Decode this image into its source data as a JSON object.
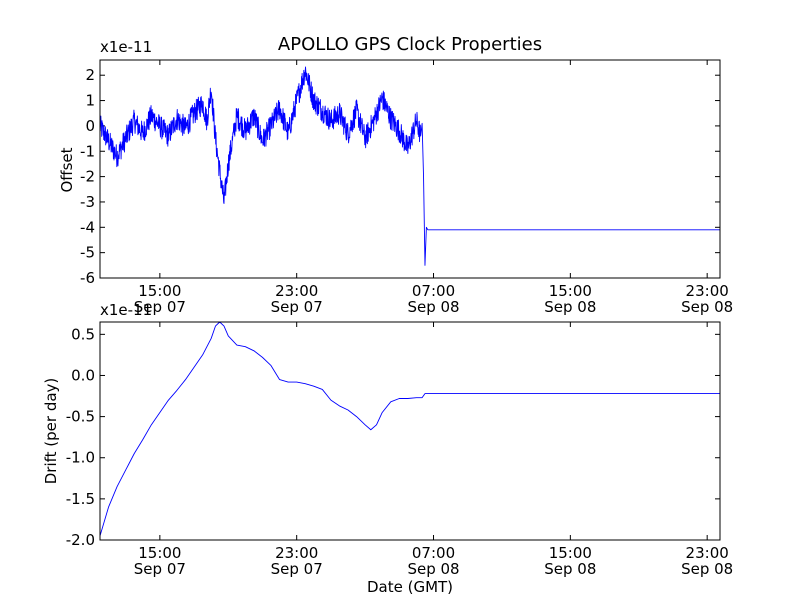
{
  "chart_data": [
    {
      "type": "line",
      "title": "APOLLO GPS Clock Properties",
      "ylabel": "Offset",
      "xlabel": "",
      "offset_text": "x1e-11",
      "x_axis": "time",
      "xlim": [
        "Sep 07 11:30",
        "Sep 08 23:45"
      ],
      "ylim": [
        -6,
        2.6
      ],
      "x_ticks": [
        {
          "time": "Sep 07 15:00",
          "label": [
            "15:00",
            "Sep 07"
          ]
        },
        {
          "time": "Sep 07 23:00",
          "label": [
            "23:00",
            "Sep 07"
          ]
        },
        {
          "time": "Sep 08 07:00",
          "label": [
            "07:00",
            "Sep 08"
          ]
        },
        {
          "time": "Sep 08 15:00",
          "label": [
            "15:00",
            "Sep 08"
          ]
        },
        {
          "time": "Sep 08 23:00",
          "label": [
            "23:00",
            "Sep 08"
          ]
        }
      ],
      "y_ticks": [
        {
          "value": 2,
          "label": "2"
        },
        {
          "value": 1,
          "label": "1"
        },
        {
          "value": 0,
          "label": "0"
        },
        {
          "value": -1,
          "label": "-1"
        },
        {
          "value": -2,
          "label": "-2"
        },
        {
          "value": -3,
          "label": "-3"
        },
        {
          "value": -4,
          "label": "-4"
        },
        {
          "value": -5,
          "label": "-5"
        },
        {
          "value": -6,
          "label": "-6"
        }
      ],
      "series": [
        {
          "color": "#0000ff",
          "x": [
            "Sep 07 11:30",
            "Sep 07 12:00",
            "Sep 07 12:30",
            "Sep 07 13:00",
            "Sep 07 13:30",
            "Sep 07 14:00",
            "Sep 07 14:30",
            "Sep 07 15:00",
            "Sep 07 15:30",
            "Sep 07 16:00",
            "Sep 07 16:30",
            "Sep 07 17:00",
            "Sep 07 17:30",
            "Sep 07 17:45",
            "Sep 07 18:00",
            "Sep 07 18:15",
            "Sep 07 18:30",
            "Sep 07 18:45",
            "Sep 07 19:00",
            "Sep 07 19:30",
            "Sep 07 20:00",
            "Sep 07 20:30",
            "Sep 07 21:00",
            "Sep 07 21:30",
            "Sep 07 22:00",
            "Sep 07 22:30",
            "Sep 07 23:00",
            "Sep 07 23:30",
            "Sep 08 00:00",
            "Sep 08 00:30",
            "Sep 08 01:00",
            "Sep 08 01:30",
            "Sep 08 02:00",
            "Sep 08 02:30",
            "Sep 08 03:00",
            "Sep 08 03:30",
            "Sep 08 04:00",
            "Sep 08 04:30",
            "Sep 08 05:00",
            "Sep 08 05:30",
            "Sep 08 06:00",
            "Sep 08 06:15",
            "Sep 08 06:20",
            "Sep 08 06:25",
            "Sep 08 06:30",
            "Sep 08 06:35",
            "Sep 08 06:40",
            "Sep 08 07:00",
            "Sep 08 12:00",
            "Sep 08 18:00",
            "Sep 08 23:45"
          ],
          "y": [
            0.0,
            -0.6,
            -1.2,
            -0.5,
            0.2,
            -0.3,
            0.4,
            0.0,
            -0.4,
            0.3,
            -0.1,
            0.5,
            0.9,
            0.2,
            1.5,
            -0.5,
            -1.8,
            -3.0,
            -1.5,
            0.4,
            -0.2,
            0.4,
            -0.6,
            0.0,
            0.7,
            -0.3,
            1.0,
            2.2,
            1.0,
            0.6,
            0.2,
            0.5,
            -0.3,
            0.6,
            -0.5,
            0.2,
            1.1,
            0.3,
            -0.2,
            -0.9,
            0.2,
            -0.4,
            0.1,
            -2.0,
            -5.5,
            -4.0,
            -4.1,
            -4.1,
            -4.1,
            -4.1,
            -4.1
          ]
        }
      ]
    },
    {
      "type": "line",
      "title": "",
      "ylabel": "Drift (per day)",
      "xlabel": "Date (GMT)",
      "offset_text": "x1e-11",
      "x_axis": "time",
      "xlim": [
        "Sep 07 11:30",
        "Sep 08 23:45"
      ],
      "ylim": [
        -2.0,
        0.65
      ],
      "x_ticks": [
        {
          "time": "Sep 07 15:00",
          "label": [
            "15:00",
            "Sep 07"
          ]
        },
        {
          "time": "Sep 07 23:00",
          "label": [
            "23:00",
            "Sep 07"
          ]
        },
        {
          "time": "Sep 08 07:00",
          "label": [
            "07:00",
            "Sep 08"
          ]
        },
        {
          "time": "Sep 08 15:00",
          "label": [
            "15:00",
            "Sep 08"
          ]
        },
        {
          "time": "Sep 08 23:00",
          "label": [
            "23:00",
            "Sep 08"
          ]
        }
      ],
      "y_ticks": [
        {
          "value": 0.5,
          "label": "0.5"
        },
        {
          "value": 0.0,
          "label": "0.0"
        },
        {
          "value": -0.5,
          "label": "-0.5"
        },
        {
          "value": -1.0,
          "label": "-1.0"
        },
        {
          "value": -1.5,
          "label": "-1.5"
        },
        {
          "value": -2.0,
          "label": "-2.0"
        }
      ],
      "series": [
        {
          "color": "#0000ff",
          "x": [
            "Sep 07 11:30",
            "Sep 07 12:00",
            "Sep 07 12:30",
            "Sep 07 13:00",
            "Sep 07 13:30",
            "Sep 07 14:00",
            "Sep 07 14:30",
            "Sep 07 15:00",
            "Sep 07 15:30",
            "Sep 07 16:00",
            "Sep 07 16:30",
            "Sep 07 17:00",
            "Sep 07 17:30",
            "Sep 07 18:00",
            "Sep 07 18:15",
            "Sep 07 18:30",
            "Sep 07 18:45",
            "Sep 07 19:00",
            "Sep 07 19:30",
            "Sep 07 20:00",
            "Sep 07 20:30",
            "Sep 07 21:00",
            "Sep 07 21:30",
            "Sep 07 22:00",
            "Sep 07 22:30",
            "Sep 07 23:00",
            "Sep 07 23:30",
            "Sep 08 00:00",
            "Sep 08 00:30",
            "Sep 08 01:00",
            "Sep 08 01:30",
            "Sep 08 02:00",
            "Sep 08 02:30",
            "Sep 08 03:00",
            "Sep 08 03:20",
            "Sep 08 03:40",
            "Sep 08 04:00",
            "Sep 08 04:30",
            "Sep 08 05:00",
            "Sep 08 05:30",
            "Sep 08 06:00",
            "Sep 08 06:20",
            "Sep 08 06:30",
            "Sep 08 07:00",
            "Sep 08 12:00",
            "Sep 08 18:00",
            "Sep 08 23:45"
          ],
          "y": [
            -1.95,
            -1.6,
            -1.35,
            -1.15,
            -0.95,
            -0.78,
            -0.6,
            -0.45,
            -0.3,
            -0.18,
            -0.05,
            0.1,
            0.25,
            0.45,
            0.6,
            0.65,
            0.6,
            0.48,
            0.37,
            0.35,
            0.3,
            0.22,
            0.12,
            -0.05,
            -0.08,
            -0.08,
            -0.1,
            -0.13,
            -0.17,
            -0.3,
            -0.37,
            -0.42,
            -0.5,
            -0.6,
            -0.66,
            -0.6,
            -0.45,
            -0.32,
            -0.28,
            -0.28,
            -0.27,
            -0.27,
            -0.22,
            -0.22,
            -0.22,
            -0.22,
            -0.22
          ]
        }
      ]
    }
  ]
}
